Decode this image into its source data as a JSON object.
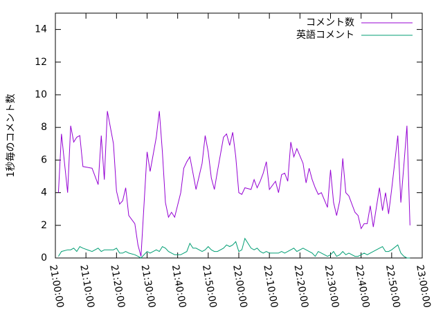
{
  "chart_data": {
    "type": "line",
    "ylabel": "1秒毎のコメント数",
    "legend": "top-right",
    "x": [
      "21:01:00",
      "21:02:00",
      "21:04:00",
      "21:05:00",
      "21:06:00",
      "21:07:00",
      "21:08:00",
      "21:09:00",
      "21:12:00",
      "21:14:00",
      "21:15:00",
      "21:16:00",
      "21:17:00",
      "21:19:00",
      "21:20:00",
      "21:21:00",
      "21:22:00",
      "21:23:00",
      "21:24:00",
      "21:26:00",
      "21:27:00",
      "21:28:00",
      "21:30:00",
      "21:31:00",
      "21:33:00",
      "21:34:00",
      "21:35:00",
      "21:36:00",
      "21:37:00",
      "21:38:00",
      "21:39:00",
      "21:41:00",
      "21:42:00",
      "21:43:00",
      "21:44:00",
      "21:45:00",
      "21:46:00",
      "21:48:00",
      "21:49:00",
      "21:50:00",
      "21:51:00",
      "21:52:00",
      "21:53:00",
      "21:55:00",
      "21:56:00",
      "21:57:00",
      "21:58:00",
      "21:59:00",
      "22:00:00",
      "22:01:00",
      "22:02:00",
      "22:04:00",
      "22:05:00",
      "22:06:00",
      "22:07:00",
      "22:08:00",
      "22:09:00",
      "22:10:00",
      "22:12:00",
      "22:13:00",
      "22:14:00",
      "22:15:00",
      "22:16:00",
      "22:17:00",
      "22:18:00",
      "22:19:00",
      "22:21:00",
      "22:22:00",
      "22:23:00",
      "22:24:00",
      "22:25:00",
      "22:26:00",
      "22:27:00",
      "22:29:00",
      "22:30:00",
      "22:31:00",
      "22:32:00",
      "22:33:00",
      "22:34:00",
      "22:35:00",
      "22:36:00",
      "22:38:00",
      "22:39:00",
      "22:40:00",
      "22:41:00",
      "22:42:00",
      "22:43:00",
      "22:44:00",
      "22:46:00",
      "22:47:00",
      "22:48:00",
      "22:49:00",
      "22:50:00",
      "22:52:00",
      "22:53:00",
      "22:54:00",
      "22:55:00",
      "22:56:00"
    ],
    "series": [
      {
        "name": "コメント数",
        "color": "#9400d3",
        "values": [
          4.0,
          7.6,
          4.0,
          8.1,
          7.1,
          7.4,
          7.5,
          5.6,
          5.5,
          4.5,
          7.5,
          4.8,
          9.0,
          7.0,
          4.1,
          3.3,
          3.5,
          4.3,
          2.6,
          2.1,
          0.8,
          0.1,
          6.5,
          5.3,
          7.4,
          9.0,
          6.5,
          3.4,
          2.5,
          2.8,
          2.5,
          4.0,
          5.5,
          5.9,
          6.2,
          5.2,
          4.2,
          5.8,
          7.5,
          6.5,
          4.9,
          4.2,
          5.3,
          7.4,
          7.6,
          6.9,
          7.7,
          6.2,
          4.0,
          3.9,
          4.3,
          4.2,
          4.8,
          4.3,
          4.7,
          5.2,
          5.9,
          4.2,
          4.7,
          4.0,
          5.1,
          5.2,
          4.7,
          7.1,
          6.2,
          6.7,
          5.8,
          4.6,
          5.5,
          4.8,
          4.3,
          3.9,
          4.0,
          3.1,
          5.4,
          3.4,
          2.6,
          3.5,
          6.1,
          4.0,
          3.8,
          2.8,
          2.6,
          1.8,
          2.1,
          2.1,
          3.2,
          1.9,
          4.3,
          2.9,
          4.0,
          2.7,
          4.2,
          7.5,
          3.4,
          5.7,
          8.1,
          2.0
        ]
      },
      {
        "name": "英語コメント",
        "color": "#009e73",
        "values": [
          0.1,
          0.4,
          0.5,
          0.5,
          0.6,
          0.4,
          0.7,
          0.6,
          0.4,
          0.6,
          0.4,
          0.5,
          0.5,
          0.5,
          0.6,
          0.3,
          0.3,
          0.4,
          0.3,
          0.2,
          0.1,
          0.0,
          0.4,
          0.3,
          0.5,
          0.4,
          0.7,
          0.6,
          0.4,
          0.3,
          0.2,
          0.2,
          0.3,
          0.4,
          0.9,
          0.6,
          0.6,
          0.4,
          0.5,
          0.7,
          0.5,
          0.4,
          0.4,
          0.6,
          0.8,
          0.7,
          0.8,
          1.0,
          0.4,
          0.5,
          1.2,
          0.6,
          0.5,
          0.6,
          0.4,
          0.3,
          0.4,
          0.3,
          0.3,
          0.3,
          0.4,
          0.3,
          0.4,
          0.5,
          0.6,
          0.4,
          0.6,
          0.5,
          0.4,
          0.3,
          0.1,
          0.4,
          0.3,
          0.1,
          0.2,
          0.4,
          0.1,
          0.2,
          0.4,
          0.2,
          0.3,
          0.1,
          0.1,
          0.2,
          0.3,
          0.2,
          0.3,
          0.4,
          0.6,
          0.7,
          0.4,
          0.4,
          0.5,
          0.8,
          0.3,
          0.1,
          0.0,
          0.0
        ]
      }
    ],
    "xlim": [
      "21:00:00",
      "23:00:00"
    ],
    "xticks": [
      "21:00:00",
      "21:10:00",
      "21:20:00",
      "21:30:00",
      "21:40:00",
      "21:50:00",
      "22:00:00",
      "22:10:00",
      "22:20:00",
      "22:30:00",
      "22:40:00",
      "22:50:00",
      "23:00:00"
    ],
    "ylim": [
      0,
      15
    ],
    "yticks": [
      0,
      2,
      4,
      6,
      8,
      10,
      12,
      14
    ]
  }
}
